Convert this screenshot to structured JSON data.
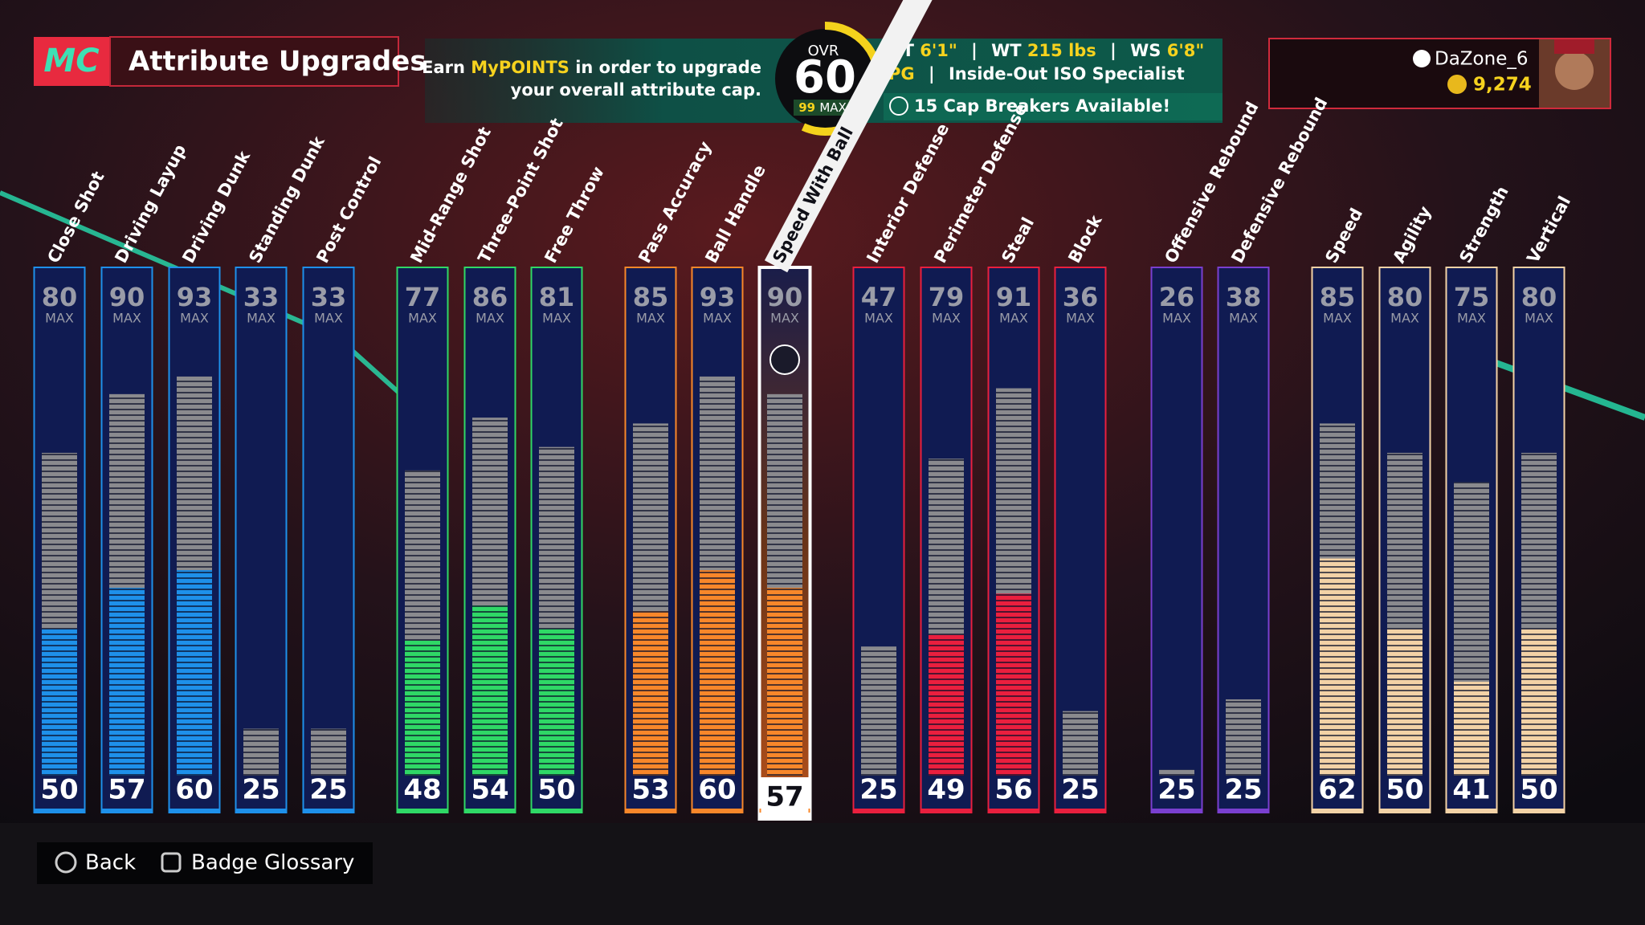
{
  "header": {
    "logo": "MC",
    "title": "Attribute Upgrades",
    "info": [
      "Earn",
      "MyPOINTS",
      "in order to upgrade",
      "your overall attribute cap."
    ]
  },
  "ovr": {
    "label": "OVR",
    "value": 60,
    "max": 99,
    "max_label": "MAX"
  },
  "player": {
    "ht_label": "HT",
    "ht": "6'1\"",
    "wt_label": "WT",
    "wt": "215 lbs",
    "ws_label": "WS",
    "ws": "6'8\"",
    "separator": "|",
    "position": "PG",
    "archetype": "Inside-Out ISO Specialist",
    "cap_breakers": "15 Cap Breakers Available!"
  },
  "account": {
    "username": "DaZone_6",
    "vc": "9,274"
  },
  "max_label": "MAX",
  "groups": {
    "inside": "#1e90ea",
    "shooting": "#2fd866",
    "playmaking": "#f8872a",
    "defense": "#ea1f3e",
    "rebounding": "#7a3fd0",
    "physicals": "#f3d2a6"
  },
  "selected": 10,
  "attributes": [
    {
      "name": "Close Shot",
      "max": 80,
      "current": 50,
      "group": "inside"
    },
    {
      "name": "Driving Layup",
      "max": 90,
      "current": 57,
      "group": "inside"
    },
    {
      "name": "Driving Dunk",
      "max": 93,
      "current": 60,
      "group": "inside"
    },
    {
      "name": "Standing Dunk",
      "max": 33,
      "current": 25,
      "group": "inside"
    },
    {
      "name": "Post Control",
      "max": 33,
      "current": 25,
      "group": "inside"
    },
    {
      "name": "Mid-Range Shot",
      "max": 77,
      "current": 48,
      "group": "shooting"
    },
    {
      "name": "Three-Point Shot",
      "max": 86,
      "current": 54,
      "group": "shooting"
    },
    {
      "name": "Free Throw",
      "max": 81,
      "current": 50,
      "group": "shooting"
    },
    {
      "name": "Pass Accuracy",
      "max": 85,
      "current": 53,
      "group": "playmaking"
    },
    {
      "name": "Ball Handle",
      "max": 93,
      "current": 60,
      "group": "playmaking"
    },
    {
      "name": "Speed With Ball",
      "max": 90,
      "current": 57,
      "group": "playmaking"
    },
    {
      "name": "Interior Defense",
      "max": 47,
      "current": 25,
      "group": "defense"
    },
    {
      "name": "Perimeter Defense",
      "max": 79,
      "current": 49,
      "group": "defense"
    },
    {
      "name": "Steal",
      "max": 91,
      "current": 56,
      "group": "defense"
    },
    {
      "name": "Block",
      "max": 36,
      "current": 25,
      "group": "defense"
    },
    {
      "name": "Offensive Rebound",
      "max": 26,
      "current": 25,
      "group": "rebounding"
    },
    {
      "name": "Defensive Rebound",
      "max": 38,
      "current": 25,
      "group": "rebounding"
    },
    {
      "name": "Speed",
      "max": 85,
      "current": 62,
      "group": "physicals"
    },
    {
      "name": "Agility",
      "max": 80,
      "current": 50,
      "group": "physicals"
    },
    {
      "name": "Strength",
      "max": 75,
      "current": 41,
      "group": "physicals"
    },
    {
      "name": "Vertical",
      "max": 80,
      "current": 50,
      "group": "physicals"
    }
  ],
  "footer": {
    "back": "Back",
    "badge_glossary": "Badge Glossary"
  }
}
